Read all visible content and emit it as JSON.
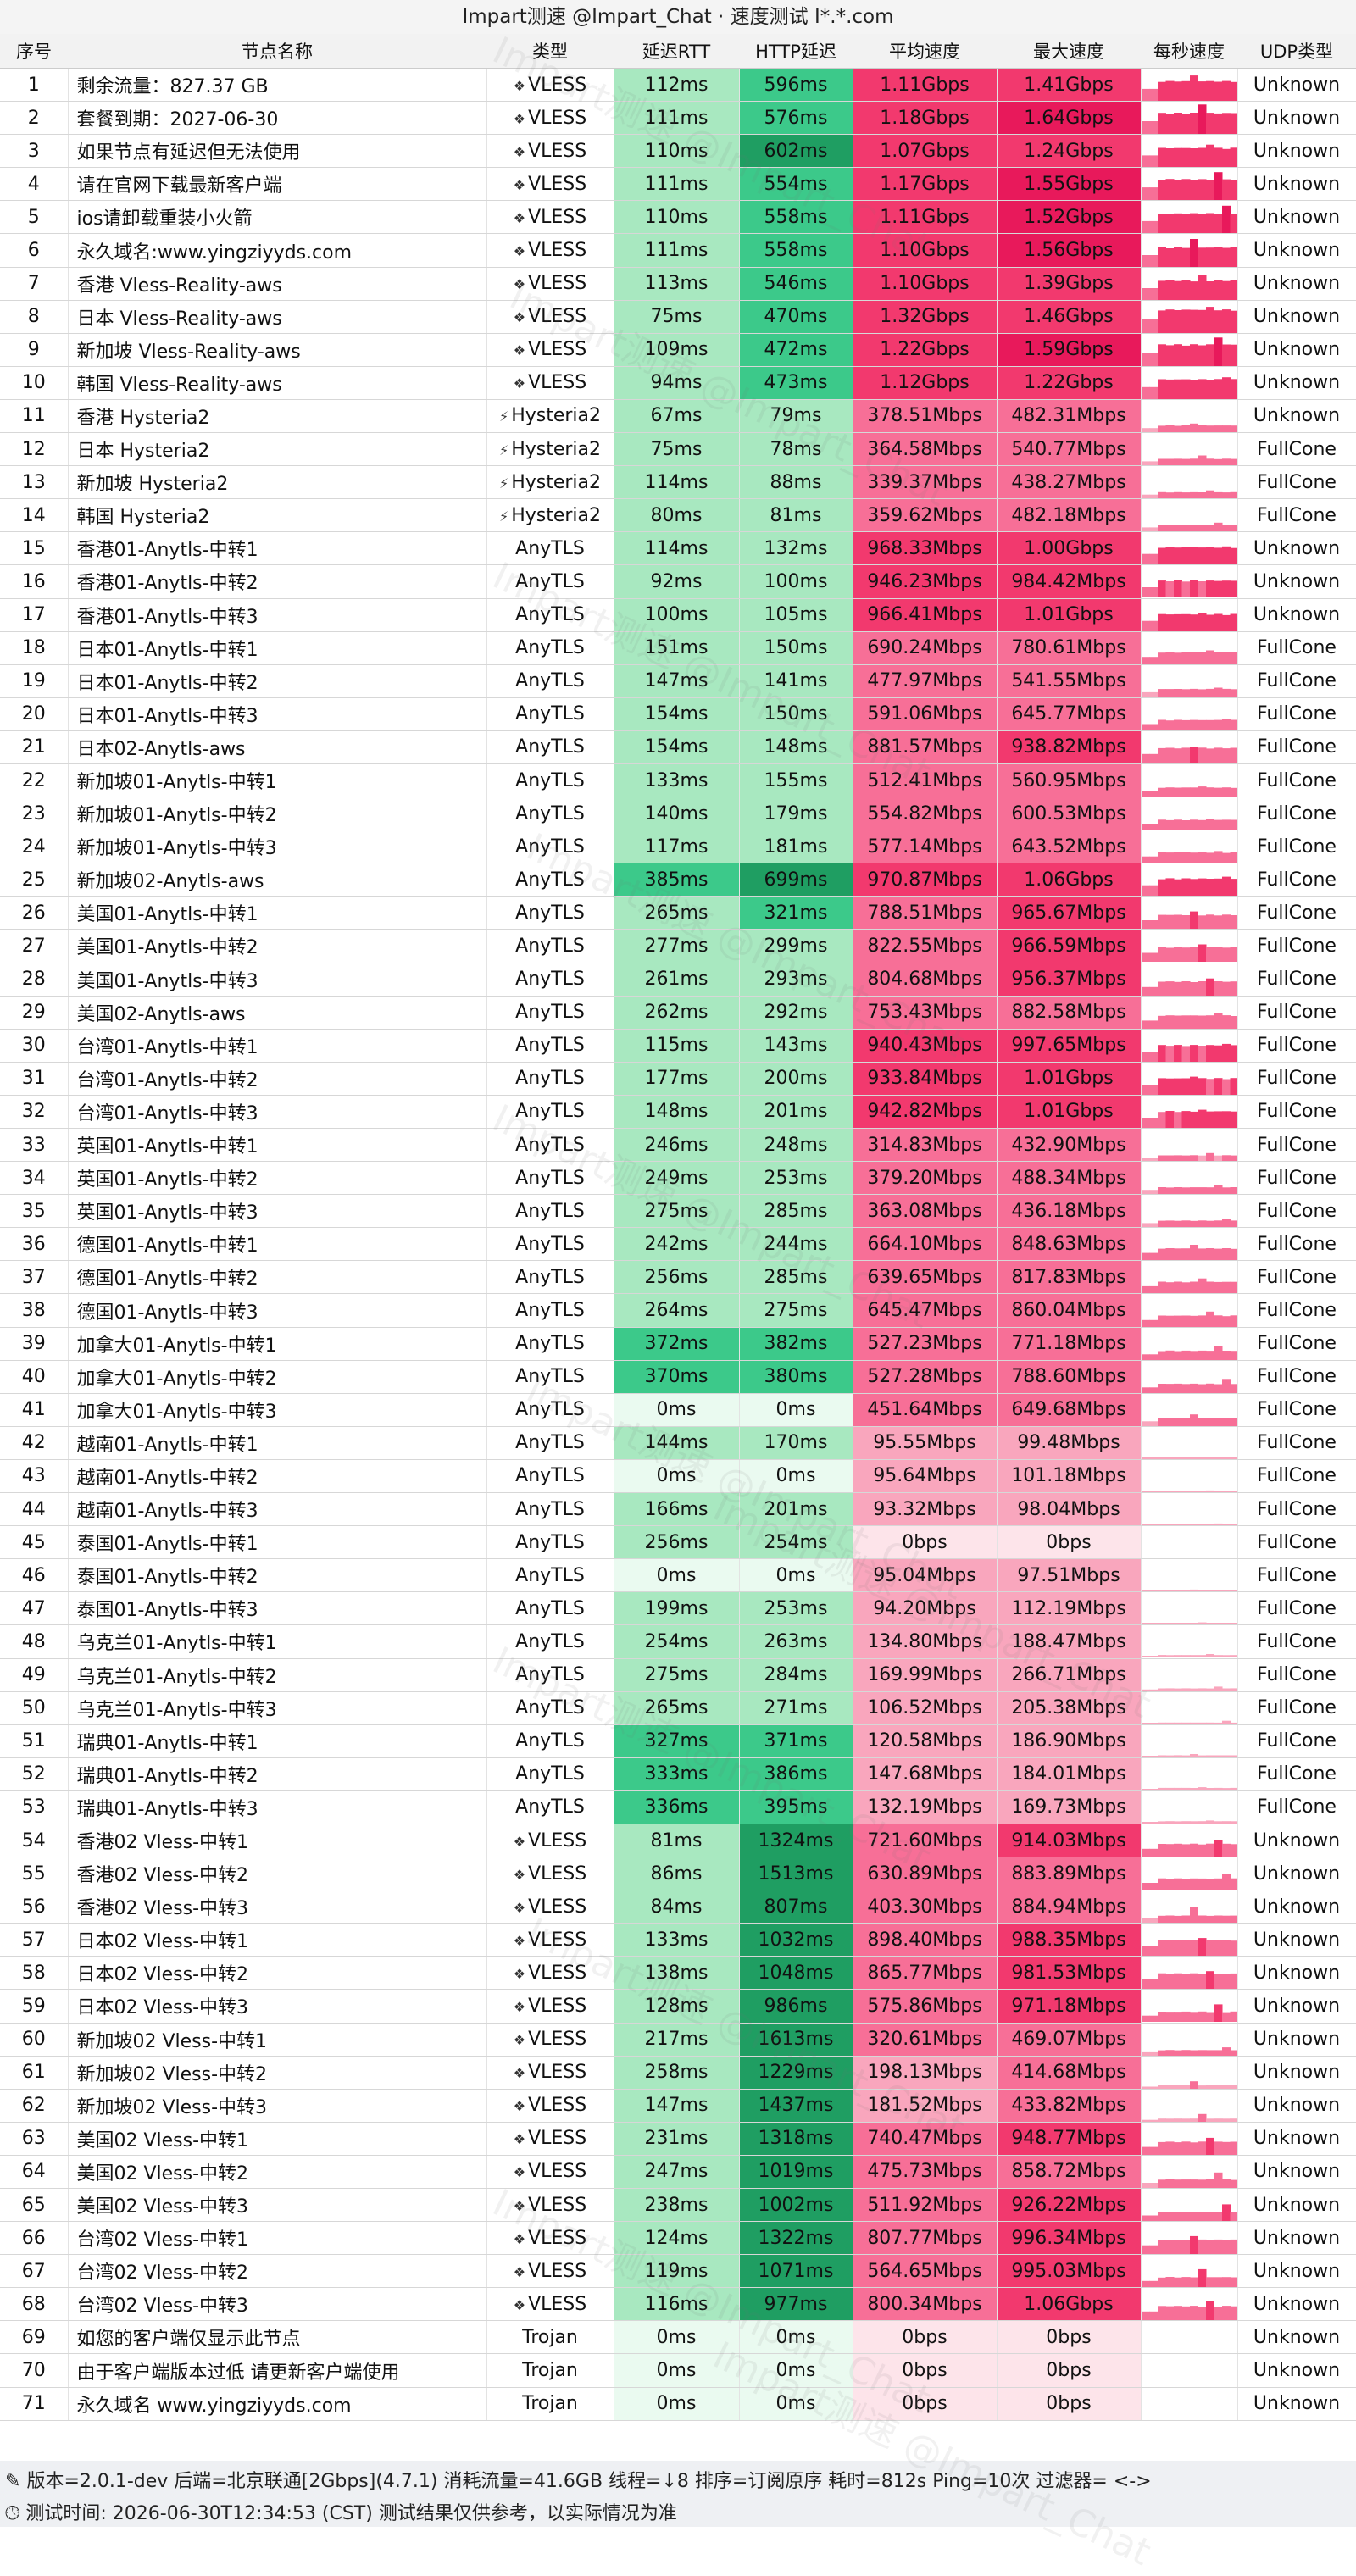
{
  "title": "Impart测速 @Impart_Chat · 速度测试 I*.*.com",
  "headers": [
    "序号",
    "节点名称",
    "类型",
    "延迟RTT",
    "HTTP延迟",
    "平均速度",
    "最大速度",
    "每秒速度",
    "UDP类型"
  ],
  "watermark": "Impart测速 @Impart_Chat",
  "colors": {
    "rtt_light": "#a8e8c0",
    "http_mid": "#3cc98a",
    "http_dark": "#1f9e62",
    "speed_high": "#f2396e",
    "speed_mid": "#f76f97",
    "speed_low": "#f9a6bd",
    "speed_zero": "#fde4ea",
    "zero_green": "#eafaf0"
  },
  "rows": [
    {
      "id": "1",
      "name": "剩余流量：827.37 GB",
      "type": "VLESS",
      "icon": "vless-icon",
      "rtt": "112ms",
      "http": "596ms",
      "avg": "1.11Gbps",
      "max": "1.41Gbps",
      "udp": "Unknown"
    },
    {
      "id": "2",
      "name": "套餐到期：2027-06-30",
      "type": "VLESS",
      "icon": "vless-icon",
      "rtt": "111ms",
      "http": "576ms",
      "avg": "1.18Gbps",
      "max": "1.64Gbps",
      "udp": "Unknown"
    },
    {
      "id": "3",
      "name": "如果节点有延迟但无法使用",
      "type": "VLESS",
      "icon": "vless-icon",
      "rtt": "110ms",
      "http": "602ms",
      "avg": "1.07Gbps",
      "max": "1.24Gbps",
      "udp": "Unknown"
    },
    {
      "id": "4",
      "name": "请在官网下载最新客户端",
      "type": "VLESS",
      "icon": "vless-icon",
      "rtt": "111ms",
      "http": "554ms",
      "avg": "1.17Gbps",
      "max": "1.55Gbps",
      "udp": "Unknown"
    },
    {
      "id": "5",
      "name": "ios请卸载重装小火箭",
      "type": "VLESS",
      "icon": "vless-icon",
      "rtt": "110ms",
      "http": "558ms",
      "avg": "1.11Gbps",
      "max": "1.52Gbps",
      "udp": "Unknown"
    },
    {
      "id": "6",
      "name": "永久域名:www.yingziyyds.com",
      "type": "VLESS",
      "icon": "vless-icon",
      "rtt": "111ms",
      "http": "558ms",
      "avg": "1.10Gbps",
      "max": "1.56Gbps",
      "udp": "Unknown"
    },
    {
      "id": "7",
      "name": "香港 Vless-Reality-aws",
      "type": "VLESS",
      "icon": "vless-icon",
      "rtt": "113ms",
      "http": "546ms",
      "avg": "1.10Gbps",
      "max": "1.39Gbps",
      "udp": "Unknown"
    },
    {
      "id": "8",
      "name": "日本 Vless-Reality-aws",
      "type": "VLESS",
      "icon": "vless-icon",
      "rtt": "75ms",
      "http": "470ms",
      "avg": "1.32Gbps",
      "max": "1.46Gbps",
      "udp": "Unknown"
    },
    {
      "id": "9",
      "name": "新加坡 Vless-Reality-aws",
      "type": "VLESS",
      "icon": "vless-icon",
      "rtt": "109ms",
      "http": "472ms",
      "avg": "1.22Gbps",
      "max": "1.59Gbps",
      "udp": "Unknown"
    },
    {
      "id": "10",
      "name": "韩国 Vless-Reality-aws",
      "type": "VLESS",
      "icon": "vless-icon",
      "rtt": "94ms",
      "http": "473ms",
      "avg": "1.12Gbps",
      "max": "1.22Gbps",
      "udp": "Unknown"
    },
    {
      "id": "11",
      "name": "香港 Hysteria2",
      "type": "Hysteria2",
      "icon": "hysteria-icon",
      "rtt": "67ms",
      "http": "79ms",
      "avg": "378.51Mbps",
      "max": "482.31Mbps",
      "udp": "Unknown"
    },
    {
      "id": "12",
      "name": "日本 Hysteria2",
      "type": "Hysteria2",
      "icon": "hysteria-icon",
      "rtt": "75ms",
      "http": "78ms",
      "avg": "364.58Mbps",
      "max": "540.77Mbps",
      "udp": "FullCone"
    },
    {
      "id": "13",
      "name": "新加坡 Hysteria2",
      "type": "Hysteria2",
      "icon": "hysteria-icon",
      "rtt": "114ms",
      "http": "88ms",
      "avg": "339.37Mbps",
      "max": "438.27Mbps",
      "udp": "FullCone"
    },
    {
      "id": "14",
      "name": "韩国 Hysteria2",
      "type": "Hysteria2",
      "icon": "hysteria-icon",
      "rtt": "80ms",
      "http": "81ms",
      "avg": "359.62Mbps",
      "max": "482.18Mbps",
      "udp": "FullCone"
    },
    {
      "id": "15",
      "name": "香港01-Anytls-中转1",
      "type": "AnyTLS",
      "icon": "",
      "rtt": "114ms",
      "http": "132ms",
      "avg": "968.33Mbps",
      "max": "1.00Gbps",
      "udp": "Unknown"
    },
    {
      "id": "16",
      "name": "香港01-Anytls-中转2",
      "type": "AnyTLS",
      "icon": "",
      "rtt": "92ms",
      "http": "100ms",
      "avg": "946.23Mbps",
      "max": "984.42Mbps",
      "udp": "Unknown"
    },
    {
      "id": "17",
      "name": "香港01-Anytls-中转3",
      "type": "AnyTLS",
      "icon": "",
      "rtt": "100ms",
      "http": "105ms",
      "avg": "966.41Mbps",
      "max": "1.01Gbps",
      "udp": "Unknown"
    },
    {
      "id": "18",
      "name": "日本01-Anytls-中转1",
      "type": "AnyTLS",
      "icon": "",
      "rtt": "151ms",
      "http": "150ms",
      "avg": "690.24Mbps",
      "max": "780.61Mbps",
      "udp": "FullCone"
    },
    {
      "id": "19",
      "name": "日本01-Anytls-中转2",
      "type": "AnyTLS",
      "icon": "",
      "rtt": "147ms",
      "http": "141ms",
      "avg": "477.97Mbps",
      "max": "541.55Mbps",
      "udp": "FullCone"
    },
    {
      "id": "20",
      "name": "日本01-Anytls-中转3",
      "type": "AnyTLS",
      "icon": "",
      "rtt": "154ms",
      "http": "150ms",
      "avg": "591.06Mbps",
      "max": "645.77Mbps",
      "udp": "FullCone"
    },
    {
      "id": "21",
      "name": "日本02-Anytls-aws",
      "type": "AnyTLS",
      "icon": "",
      "rtt": "154ms",
      "http": "148ms",
      "avg": "881.57Mbps",
      "max": "938.82Mbps",
      "udp": "FullCone"
    },
    {
      "id": "22",
      "name": "新加坡01-Anytls-中转1",
      "type": "AnyTLS",
      "icon": "",
      "rtt": "133ms",
      "http": "155ms",
      "avg": "512.41Mbps",
      "max": "560.95Mbps",
      "udp": "FullCone"
    },
    {
      "id": "23",
      "name": "新加坡01-Anytls-中转2",
      "type": "AnyTLS",
      "icon": "",
      "rtt": "140ms",
      "http": "179ms",
      "avg": "554.82Mbps",
      "max": "600.53Mbps",
      "udp": "FullCone"
    },
    {
      "id": "24",
      "name": "新加坡01-Anytls-中转3",
      "type": "AnyTLS",
      "icon": "",
      "rtt": "117ms",
      "http": "181ms",
      "avg": "577.14Mbps",
      "max": "643.52Mbps",
      "udp": "FullCone"
    },
    {
      "id": "25",
      "name": "新加坡02-Anytls-aws",
      "type": "AnyTLS",
      "icon": "",
      "rtt": "385ms",
      "http": "699ms",
      "avg": "970.87Mbps",
      "max": "1.06Gbps",
      "udp": "FullCone"
    },
    {
      "id": "26",
      "name": "美国01-Anytls-中转1",
      "type": "AnyTLS",
      "icon": "",
      "rtt": "265ms",
      "http": "321ms",
      "avg": "788.51Mbps",
      "max": "965.67Mbps",
      "udp": "FullCone"
    },
    {
      "id": "27",
      "name": "美国01-Anytls-中转2",
      "type": "AnyTLS",
      "icon": "",
      "rtt": "277ms",
      "http": "299ms",
      "avg": "822.55Mbps",
      "max": "966.59Mbps",
      "udp": "FullCone"
    },
    {
      "id": "28",
      "name": "美国01-Anytls-中转3",
      "type": "AnyTLS",
      "icon": "",
      "rtt": "261ms",
      "http": "293ms",
      "avg": "804.68Mbps",
      "max": "956.37Mbps",
      "udp": "FullCone"
    },
    {
      "id": "29",
      "name": "美国02-Anytls-aws",
      "type": "AnyTLS",
      "icon": "",
      "rtt": "262ms",
      "http": "292ms",
      "avg": "753.43Mbps",
      "max": "882.58Mbps",
      "udp": "FullCone"
    },
    {
      "id": "30",
      "name": "台湾01-Anytls-中转1",
      "type": "AnyTLS",
      "icon": "",
      "rtt": "115ms",
      "http": "143ms",
      "avg": "940.43Mbps",
      "max": "997.65Mbps",
      "udp": "FullCone"
    },
    {
      "id": "31",
      "name": "台湾01-Anytls-中转2",
      "type": "AnyTLS",
      "icon": "",
      "rtt": "177ms",
      "http": "200ms",
      "avg": "933.84Mbps",
      "max": "1.01Gbps",
      "udp": "FullCone"
    },
    {
      "id": "32",
      "name": "台湾01-Anytls-中转3",
      "type": "AnyTLS",
      "icon": "",
      "rtt": "148ms",
      "http": "201ms",
      "avg": "942.82Mbps",
      "max": "1.01Gbps",
      "udp": "FullCone"
    },
    {
      "id": "33",
      "name": "英国01-Anytls-中转1",
      "type": "AnyTLS",
      "icon": "",
      "rtt": "246ms",
      "http": "248ms",
      "avg": "314.83Mbps",
      "max": "432.90Mbps",
      "udp": "FullCone"
    },
    {
      "id": "34",
      "name": "英国01-Anytls-中转2",
      "type": "AnyTLS",
      "icon": "",
      "rtt": "249ms",
      "http": "253ms",
      "avg": "379.20Mbps",
      "max": "488.34Mbps",
      "udp": "FullCone"
    },
    {
      "id": "35",
      "name": "英国01-Anytls-中转3",
      "type": "AnyTLS",
      "icon": "",
      "rtt": "275ms",
      "http": "285ms",
      "avg": "363.08Mbps",
      "max": "436.18Mbps",
      "udp": "FullCone"
    },
    {
      "id": "36",
      "name": "德国01-Anytls-中转1",
      "type": "AnyTLS",
      "icon": "",
      "rtt": "242ms",
      "http": "244ms",
      "avg": "664.10Mbps",
      "max": "848.63Mbps",
      "udp": "FullCone"
    },
    {
      "id": "37",
      "name": "德国01-Anytls-中转2",
      "type": "AnyTLS",
      "icon": "",
      "rtt": "256ms",
      "http": "285ms",
      "avg": "639.65Mbps",
      "max": "817.83Mbps",
      "udp": "FullCone"
    },
    {
      "id": "38",
      "name": "德国01-Anytls-中转3",
      "type": "AnyTLS",
      "icon": "",
      "rtt": "264ms",
      "http": "275ms",
      "avg": "645.47Mbps",
      "max": "860.04Mbps",
      "udp": "FullCone"
    },
    {
      "id": "39",
      "name": "加拿大01-Anytls-中转1",
      "type": "AnyTLS",
      "icon": "",
      "rtt": "372ms",
      "http": "382ms",
      "avg": "527.23Mbps",
      "max": "771.18Mbps",
      "udp": "FullCone"
    },
    {
      "id": "40",
      "name": "加拿大01-Anytls-中转2",
      "type": "AnyTLS",
      "icon": "",
      "rtt": "370ms",
      "http": "380ms",
      "avg": "527.28Mbps",
      "max": "788.60Mbps",
      "udp": "FullCone"
    },
    {
      "id": "41",
      "name": "加拿大01-Anytls-中转3",
      "type": "AnyTLS",
      "icon": "",
      "rtt": "0ms",
      "http": "0ms",
      "avg": "451.64Mbps",
      "max": "649.68Mbps",
      "udp": "FullCone"
    },
    {
      "id": "42",
      "name": "越南01-Anytls-中转1",
      "type": "AnyTLS",
      "icon": "",
      "rtt": "144ms",
      "http": "170ms",
      "avg": "95.55Mbps",
      "max": "99.48Mbps",
      "udp": "FullCone"
    },
    {
      "id": "43",
      "name": "越南01-Anytls-中转2",
      "type": "AnyTLS",
      "icon": "",
      "rtt": "0ms",
      "http": "0ms",
      "avg": "95.64Mbps",
      "max": "101.18Mbps",
      "udp": "FullCone"
    },
    {
      "id": "44",
      "name": "越南01-Anytls-中转3",
      "type": "AnyTLS",
      "icon": "",
      "rtt": "166ms",
      "http": "201ms",
      "avg": "93.32Mbps",
      "max": "98.04Mbps",
      "udp": "FullCone"
    },
    {
      "id": "45",
      "name": "泰国01-Anytls-中转1",
      "type": "AnyTLS",
      "icon": "",
      "rtt": "256ms",
      "http": "254ms",
      "avg": "0bps",
      "max": "0bps",
      "udp": "FullCone"
    },
    {
      "id": "46",
      "name": "泰国01-Anytls-中转2",
      "type": "AnyTLS",
      "icon": "",
      "rtt": "0ms",
      "http": "0ms",
      "avg": "95.04Mbps",
      "max": "97.51Mbps",
      "udp": "FullCone"
    },
    {
      "id": "47",
      "name": "泰国01-Anytls-中转3",
      "type": "AnyTLS",
      "icon": "",
      "rtt": "199ms",
      "http": "253ms",
      "avg": "94.20Mbps",
      "max": "112.19Mbps",
      "udp": "FullCone"
    },
    {
      "id": "48",
      "name": "乌克兰01-Anytls-中转1",
      "type": "AnyTLS",
      "icon": "",
      "rtt": "254ms",
      "http": "263ms",
      "avg": "134.80Mbps",
      "max": "188.47Mbps",
      "udp": "FullCone"
    },
    {
      "id": "49",
      "name": "乌克兰01-Anytls-中转2",
      "type": "AnyTLS",
      "icon": "",
      "rtt": "275ms",
      "http": "284ms",
      "avg": "169.99Mbps",
      "max": "266.71Mbps",
      "udp": "FullCone"
    },
    {
      "id": "50",
      "name": "乌克兰01-Anytls-中转3",
      "type": "AnyTLS",
      "icon": "",
      "rtt": "265ms",
      "http": "271ms",
      "avg": "106.52Mbps",
      "max": "205.38Mbps",
      "udp": "FullCone"
    },
    {
      "id": "51",
      "name": "瑞典01-Anytls-中转1",
      "type": "AnyTLS",
      "icon": "",
      "rtt": "327ms",
      "http": "371ms",
      "avg": "120.58Mbps",
      "max": "186.90Mbps",
      "udp": "FullCone"
    },
    {
      "id": "52",
      "name": "瑞典01-Anytls-中转2",
      "type": "AnyTLS",
      "icon": "",
      "rtt": "333ms",
      "http": "386ms",
      "avg": "147.68Mbps",
      "max": "184.01Mbps",
      "udp": "FullCone"
    },
    {
      "id": "53",
      "name": "瑞典01-Anytls-中转3",
      "type": "AnyTLS",
      "icon": "",
      "rtt": "336ms",
      "http": "395ms",
      "avg": "132.19Mbps",
      "max": "169.73Mbps",
      "udp": "FullCone"
    },
    {
      "id": "54",
      "name": "香港02 Vless-中转1",
      "type": "VLESS",
      "icon": "vless-icon",
      "rtt": "81ms",
      "http": "1324ms",
      "avg": "721.60Mbps",
      "max": "914.03Mbps",
      "udp": "Unknown"
    },
    {
      "id": "55",
      "name": "香港02 Vless-中转2",
      "type": "VLESS",
      "icon": "vless-icon",
      "rtt": "86ms",
      "http": "1513ms",
      "avg": "630.89Mbps",
      "max": "883.89Mbps",
      "udp": "Unknown"
    },
    {
      "id": "56",
      "name": "香港02 Vless-中转3",
      "type": "VLESS",
      "icon": "vless-icon",
      "rtt": "84ms",
      "http": "807ms",
      "avg": "403.30Mbps",
      "max": "884.94Mbps",
      "udp": "Unknown"
    },
    {
      "id": "57",
      "name": "日本02 Vless-中转1",
      "type": "VLESS",
      "icon": "vless-icon",
      "rtt": "133ms",
      "http": "1032ms",
      "avg": "898.40Mbps",
      "max": "988.35Mbps",
      "udp": "Unknown"
    },
    {
      "id": "58",
      "name": "日本02 Vless-中转2",
      "type": "VLESS",
      "icon": "vless-icon",
      "rtt": "138ms",
      "http": "1048ms",
      "avg": "865.77Mbps",
      "max": "981.53Mbps",
      "udp": "Unknown"
    },
    {
      "id": "59",
      "name": "日本02 Vless-中转3",
      "type": "VLESS",
      "icon": "vless-icon",
      "rtt": "128ms",
      "http": "986ms",
      "avg": "575.86Mbps",
      "max": "971.18Mbps",
      "udp": "Unknown"
    },
    {
      "id": "60",
      "name": "新加坡02 Vless-中转1",
      "type": "VLESS",
      "icon": "vless-icon",
      "rtt": "217ms",
      "http": "1613ms",
      "avg": "320.61Mbps",
      "max": "469.07Mbps",
      "udp": "Unknown"
    },
    {
      "id": "61",
      "name": "新加坡02 Vless-中转2",
      "type": "VLESS",
      "icon": "vless-icon",
      "rtt": "258ms",
      "http": "1229ms",
      "avg": "198.13Mbps",
      "max": "414.68Mbps",
      "udp": "Unknown"
    },
    {
      "id": "62",
      "name": "新加坡02 Vless-中转3",
      "type": "VLESS",
      "icon": "vless-icon",
      "rtt": "147ms",
      "http": "1437ms",
      "avg": "181.52Mbps",
      "max": "433.82Mbps",
      "udp": "Unknown"
    },
    {
      "id": "63",
      "name": "美国02 Vless-中转1",
      "type": "VLESS",
      "icon": "vless-icon",
      "rtt": "231ms",
      "http": "1318ms",
      "avg": "740.47Mbps",
      "max": "948.77Mbps",
      "udp": "Unknown"
    },
    {
      "id": "64",
      "name": "美国02 Vless-中转2",
      "type": "VLESS",
      "icon": "vless-icon",
      "rtt": "247ms",
      "http": "1019ms",
      "avg": "475.73Mbps",
      "max": "858.72Mbps",
      "udp": "Unknown"
    },
    {
      "id": "65",
      "name": "美国02 Vless-中转3",
      "type": "VLESS",
      "icon": "vless-icon",
      "rtt": "238ms",
      "http": "1002ms",
      "avg": "511.92Mbps",
      "max": "926.22Mbps",
      "udp": "Unknown"
    },
    {
      "id": "66",
      "name": "台湾02 Vless-中转1",
      "type": "VLESS",
      "icon": "vless-icon",
      "rtt": "124ms",
      "http": "1322ms",
      "avg": "807.77Mbps",
      "max": "996.34Mbps",
      "udp": "Unknown"
    },
    {
      "id": "67",
      "name": "台湾02 Vless-中转2",
      "type": "VLESS",
      "icon": "vless-icon",
      "rtt": "119ms",
      "http": "1071ms",
      "avg": "564.65Mbps",
      "max": "995.03Mbps",
      "udp": "Unknown"
    },
    {
      "id": "68",
      "name": "台湾02 Vless-中转3",
      "type": "VLESS",
      "icon": "vless-icon",
      "rtt": "116ms",
      "http": "977ms",
      "avg": "800.34Mbps",
      "max": "1.06Gbps",
      "udp": "Unknown"
    },
    {
      "id": "69",
      "name": "如您的客户端仅显示此节点",
      "type": "Trojan",
      "icon": "",
      "rtt": "0ms",
      "http": "0ms",
      "avg": "0bps",
      "max": "0bps",
      "udp": "Unknown"
    },
    {
      "id": "70",
      "name": "由于客户端版本过低 请更新客户端使用",
      "type": "Trojan",
      "icon": "",
      "rtt": "0ms",
      "http": "0ms",
      "avg": "0bps",
      "max": "0bps",
      "udp": "Unknown"
    },
    {
      "id": "71",
      "name": "永久域名 www.yingziyyds.com",
      "type": "Trojan",
      "icon": "",
      "rtt": "0ms",
      "http": "0ms",
      "avg": "0bps",
      "max": "0bps",
      "udp": "Unknown"
    }
  ],
  "footer": {
    "line1": "版本=2.0.1-dev  后端=北京联通[2Gbps](4.7.1)  消耗流量=41.6GB  线程=↓8  排序=订阅原序  耗时=812s  Ping=10次  过滤器= <->",
    "line2": "测试时间: 2026-06-30T12:34:53 (CST)  测试结果仅供参考，以实际情况为准"
  }
}
